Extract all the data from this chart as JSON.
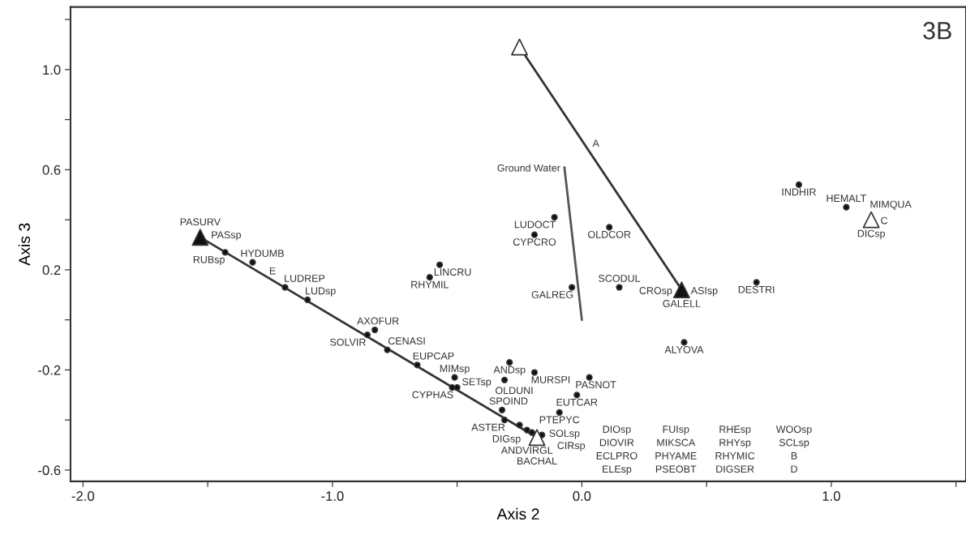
{
  "chart_data": {
    "type": "scatter",
    "xlabel": "Axis 2",
    "ylabel": "Axis 3",
    "xlim": [
      -2.05,
      1.54
    ],
    "ylim": [
      -0.645,
      1.25
    ],
    "xticks": [
      {
        "value": -2,
        "label": "-2.0"
      },
      {
        "value": -1.5,
        "label": null
      },
      {
        "value": -1,
        "label": "-1.0"
      },
      {
        "value": -0.5,
        "label": null
      },
      {
        "value": 0,
        "label": "0.0"
      },
      {
        "value": 0.5,
        "label": null
      },
      {
        "value": 1,
        "label": "1.0"
      },
      {
        "value": 1.5,
        "label": null
      }
    ],
    "yticks": [
      {
        "value": -0.6,
        "label": "-0.6"
      },
      {
        "value": -0.4,
        "label": null
      },
      {
        "value": -0.2,
        "label": "-0.2"
      },
      {
        "value": 0,
        "label": null
      },
      {
        "value": 0.2,
        "label": "0.2"
      },
      {
        "value": 0.4,
        "label": null
      },
      {
        "value": 0.6,
        "label": "0.6"
      },
      {
        "value": 0.8,
        "label": null
      },
      {
        "value": 1.0,
        "label": "1.0"
      },
      {
        "value": 1.2,
        "label": null
      }
    ],
    "grid": false,
    "series": [
      {
        "type": "line",
        "color": "#333333",
        "marker": "none",
        "x": [
          -1.53,
          -0.18
        ],
        "values": [
          0.33,
          -0.47
        ]
      },
      {
        "type": "line",
        "color": "#333333",
        "marker": "none",
        "x": [
          0.4,
          -0.25
        ],
        "values": [
          0.12,
          1.09
        ]
      },
      {
        "type": "line",
        "color": "#555555",
        "marker": "none",
        "x": [
          0.0,
          -0.07
        ],
        "values": [
          0.0,
          0.61
        ]
      },
      {
        "type": "scatter",
        "color": "#111111",
        "marker": "circle",
        "x": [
          -1.43,
          -1.32,
          -1.19,
          -1.1,
          -0.83,
          -0.86,
          -0.78,
          -0.66,
          -0.51,
          -0.52,
          -0.5,
          -0.29,
          -0.19,
          -0.31,
          0.03,
          -0.02,
          -0.32,
          -0.09,
          -0.31,
          -0.25,
          -0.22,
          -0.2,
          -0.16,
          -0.11,
          -0.19,
          0.11,
          -0.57,
          -0.61,
          -0.04,
          0.15,
          0.87,
          1.06,
          0.7,
          0.41
        ],
        "values": [
          0.27,
          0.23,
          0.13,
          0.08,
          -0.04,
          -0.06,
          -0.12,
          -0.18,
          -0.23,
          -0.27,
          -0.27,
          -0.17,
          -0.21,
          -0.24,
          -0.23,
          -0.3,
          -0.36,
          -0.37,
          -0.4,
          -0.42,
          -0.44,
          -0.45,
          -0.46,
          0.41,
          0.34,
          0.37,
          0.22,
          0.17,
          0.13,
          0.13,
          0.54,
          0.45,
          0.15,
          -0.09
        ]
      },
      {
        "type": "scatter",
        "color": "#111111",
        "marker": "triangle",
        "x": [
          -1.53,
          0.4
        ],
        "values": [
          0.33,
          0.12
        ]
      },
      {
        "type": "scatter",
        "color": "#ffffff",
        "marker": "triangle",
        "x": [
          -0.25,
          1.16,
          -0.18
        ],
        "values": [
          1.09,
          0.4,
          -0.47
        ]
      }
    ],
    "annotations": [
      {
        "text": "PASsp",
        "x": -1.53,
        "y": 0.33
      },
      {
        "text": "PASURV",
        "x": -1.53,
        "y": 0.33
      },
      {
        "text": "RUBsp",
        "x": -1.43,
        "y": 0.27
      },
      {
        "text": "HYDUMB",
        "x": -1.32,
        "y": 0.23
      },
      {
        "text": "LUDREP",
        "x": -1.19,
        "y": 0.13
      },
      {
        "text": "LUDsp",
        "x": -1.1,
        "y": 0.08
      },
      {
        "text": "E",
        "x": -1.24,
        "y": 0.16
      },
      {
        "text": "SOLVIR",
        "x": -0.86,
        "y": -0.06
      },
      {
        "text": "AXOFUR",
        "x": -0.83,
        "y": -0.04
      },
      {
        "text": "CENASI",
        "x": -0.78,
        "y": -0.12
      },
      {
        "text": "EUPCAP",
        "x": -0.66,
        "y": -0.18
      },
      {
        "text": "MIMsp",
        "x": -0.51,
        "y": -0.23
      },
      {
        "text": "CYPHAS",
        "x": -0.52,
        "y": -0.27
      },
      {
        "text": "SETsp",
        "x": -0.5,
        "y": -0.27
      },
      {
        "text": "ANDsp",
        "x": -0.29,
        "y": -0.17
      },
      {
        "text": "MURSPI",
        "x": -0.19,
        "y": -0.21
      },
      {
        "text": "OLDUNI",
        "x": -0.31,
        "y": -0.24
      },
      {
        "text": "PASNOT",
        "x": 0.03,
        "y": -0.23
      },
      {
        "text": "EUTCAR",
        "x": -0.02,
        "y": -0.3
      },
      {
        "text": "SPOIND",
        "x": -0.32,
        "y": -0.36
      },
      {
        "text": "PTEPYC",
        "x": -0.09,
        "y": -0.37
      },
      {
        "text": "ASTER",
        "x": -0.31,
        "y": -0.4
      },
      {
        "text": "DIGsp",
        "x": -0.25,
        "y": -0.42
      },
      {
        "text": "ANDVIRGL",
        "x": -0.22,
        "y": -0.44
      },
      {
        "text": "SOLsp",
        "x": -0.2,
        "y": -0.45
      },
      {
        "text": "BACHAL",
        "x": -0.18,
        "y": -0.47
      },
      {
        "text": "CIRsp",
        "x": -0.16,
        "y": -0.46
      },
      "DIOsp",
      "DIOVIR",
      "ECLPRO",
      "ELEsp",
      "FUIsp",
      "MIKSCA",
      "PHYAME",
      "PSEOBT",
      "RHEsp",
      "RHYsp",
      "RHYMIC",
      "DIGSER",
      "WOOsp",
      "SCLsp",
      "B",
      "D",
      {
        "text": "ALYOVA",
        "x": 0.41,
        "y": -0.09
      },
      {
        "text": "ASIsp",
        "x": 0.4,
        "y": 0.12
      },
      {
        "text": "CROsp",
        "x": 0.4,
        "y": 0.12
      },
      {
        "text": "GALELL",
        "x": 0.4,
        "y": 0.12
      },
      {
        "text": "DESTRI",
        "x": 0.7,
        "y": 0.15
      },
      {
        "text": "INDHIR",
        "x": 0.87,
        "y": 0.54
      },
      {
        "text": "HEMALT",
        "x": 1.06,
        "y": 0.45
      },
      {
        "text": "C",
        "x": 1.16,
        "y": 0.4
      },
      {
        "text": "DICsp",
        "x": 1.16,
        "y": 0.4
      },
      {
        "text": "MIMQUA",
        "x": 1.16,
        "y": 0.4
      },
      {
        "text": "A",
        "x": 0.03,
        "y": 0.67
      },
      {
        "text": "Ground Water",
        "x": -0.07,
        "y": 0.61
      },
      {
        "text": "LUDOCT",
        "x": -0.11,
        "y": 0.41
      },
      {
        "text": "CYPCRO",
        "x": -0.19,
        "y": 0.34
      },
      {
        "text": "OLDCOR",
        "x": 0.11,
        "y": 0.37
      },
      {
        "text": "LINCRU",
        "x": -0.57,
        "y": 0.22
      },
      {
        "text": "RHYMIL",
        "x": -0.61,
        "y": 0.17
      },
      {
        "text": "GALREG",
        "x": -0.04,
        "y": 0.13
      },
      {
        "text": "SCODUL",
        "x": 0.15,
        "y": 0.13
      },
      "3B"
    ]
  }
}
